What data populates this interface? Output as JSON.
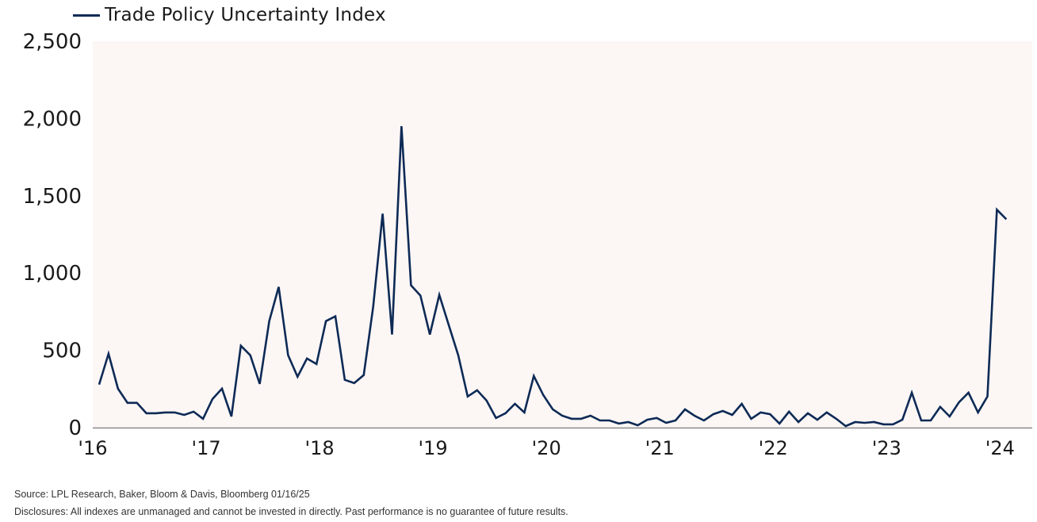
{
  "legend": {
    "label": "Trade Policy Uncertainty Index",
    "color": "#0d2a55"
  },
  "footer": {
    "source": "Source: LPL Research, Baker, Bloom & Davis, Bloomberg 01/16/25",
    "disclosure": "Disclosures: All indexes are unmanaged and cannot be invested in directly. Past performance is no guarantee of future results."
  },
  "chart_data": {
    "type": "line",
    "title": "",
    "xlabel": "",
    "ylabel": "",
    "ylim": [
      0,
      2500
    ],
    "yticks": [
      0,
      500,
      1000,
      1500,
      2000,
      2500
    ],
    "ytick_labels": [
      "0",
      "500",
      "1,000",
      "1,500",
      "2,000",
      "2,500"
    ],
    "xtick_labels": [
      "'16",
      "'17",
      "'18",
      "'19",
      "'20",
      "'21",
      "'22",
      "'23",
      "'24"
    ],
    "xtick_month_index": [
      0,
      12,
      24,
      36,
      48,
      60,
      72,
      84,
      96
    ],
    "grid": false,
    "legend_position": "top-left",
    "plot_background": "#fcf6f5",
    "x_start": "2016-01",
    "x_frequency": "monthly",
    "series": [
      {
        "name": "Trade Policy Uncertainty Index",
        "color": "#0d2a55",
        "values": [
          278,
          478,
          252,
          160,
          160,
          93,
          93,
          98,
          98,
          82,
          103,
          57,
          185,
          252,
          72,
          530,
          468,
          283,
          689,
          910,
          468,
          329,
          447,
          411,
          689,
          720,
          309,
          288,
          340,
          782,
          1384,
          602,
          1950,
          921,
          854,
          602,
          859,
          664,
          468,
          201,
          242,
          175,
          62,
          93,
          154,
          98,
          334,
          211,
          118,
          77,
          57,
          57,
          77,
          46,
          46,
          26,
          36,
          15,
          51,
          62,
          31,
          46,
          118,
          77,
          46,
          87,
          108,
          82,
          154,
          57,
          98,
          87,
          26,
          103,
          36,
          93,
          51,
          98,
          57,
          10,
          36,
          31,
          36,
          21,
          21,
          51,
          226,
          46,
          46,
          134,
          72,
          165,
          226,
          98,
          201,
          1410,
          1348
        ]
      }
    ]
  }
}
